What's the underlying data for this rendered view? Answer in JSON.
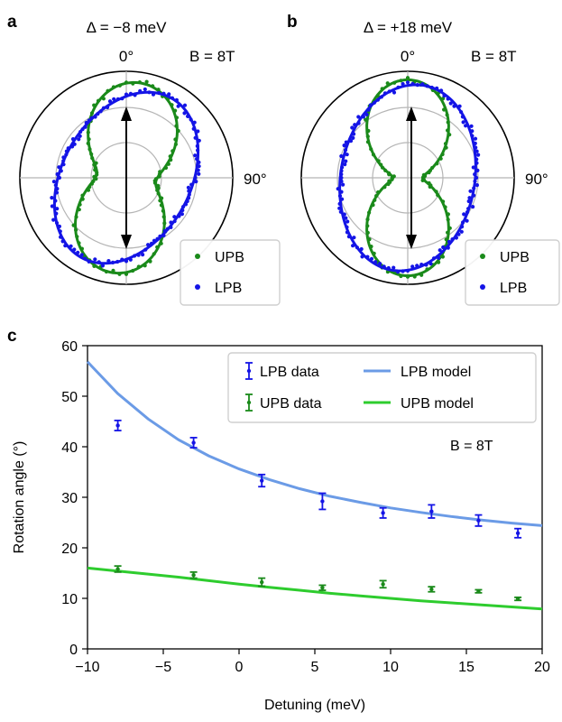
{
  "panels": {
    "a": {
      "letter": "a",
      "title": "Δ = −8 meV",
      "angle_top": "0°",
      "angle_right": "90°",
      "field_label": "B = 8T",
      "legend": [
        "UPB",
        "LPB"
      ]
    },
    "b": {
      "letter": "b",
      "title": "Δ = +18 meV",
      "angle_top": "0°",
      "angle_right": "90°",
      "field_label": "B = 8T",
      "legend": [
        "UPB",
        "LPB"
      ]
    },
    "c": {
      "letter": "c",
      "field_label": "B = 8T"
    }
  },
  "colors": {
    "upb_polar": "#1a8a1a",
    "lpb_polar": "#1414e6",
    "lpb_data": "#1414e6",
    "upb_data": "#1a8a1a",
    "lpb_model": "#6b9be6",
    "upb_model": "#2ecc2e"
  },
  "chart_data": [
    {
      "type": "scatter",
      "polar": true,
      "panel": "a",
      "title": "Δ = −8 meV",
      "angular_ticks": [
        "0°",
        "90°"
      ],
      "series": [
        {
          "name": "UPB",
          "shape": "figure-eight lobes along vertical, slightly tilted",
          "tilt_deg": 8
        },
        {
          "name": "LPB",
          "shape": "ellipse elongated along vertical, tilted",
          "tilt_deg": 30
        }
      ],
      "arrow": "vertical double-headed"
    },
    {
      "type": "scatter",
      "polar": true,
      "panel": "b",
      "title": "Δ = +18 meV",
      "angular_ticks": [
        "0°",
        "90°"
      ],
      "series": [
        {
          "name": "UPB",
          "shape": "figure-eight lobes along vertical",
          "tilt_deg": 0
        },
        {
          "name": "LPB",
          "shape": "ellipse elongated along vertical",
          "tilt_deg": 10
        }
      ],
      "arrow": "vertical double-headed"
    },
    {
      "type": "scatter",
      "panel": "c",
      "xlabel": "Detuning (meV)",
      "ylabel": "Rotation angle (°)",
      "xlim": [
        -10,
        20
      ],
      "ylim": [
        0,
        60
      ],
      "xticks": [
        -10,
        -5,
        0,
        5,
        10,
        15,
        20
      ],
      "yticks": [
        0,
        10,
        20,
        30,
        40,
        50,
        60
      ],
      "annotation": "B = 8T",
      "legend_position": "top-right",
      "series": [
        {
          "name": "LPB data",
          "kind": "errorbar",
          "x": [
            -8.0,
            -3.0,
            1.5,
            5.5,
            9.5,
            12.7,
            15.8,
            18.4
          ],
          "y": [
            44.2,
            40.8,
            33.3,
            29.2,
            26.9,
            27.2,
            25.4,
            22.9
          ],
          "err": [
            1.0,
            1.0,
            1.2,
            1.6,
            1.0,
            1.3,
            1.1,
            0.9
          ]
        },
        {
          "name": "UPB data",
          "kind": "errorbar",
          "x": [
            -8.0,
            -3.0,
            1.5,
            5.5,
            9.5,
            12.7,
            15.8,
            18.4
          ],
          "y": [
            15.8,
            14.6,
            13.2,
            12.1,
            12.8,
            11.8,
            11.4,
            9.9
          ],
          "err": [
            0.6,
            0.6,
            0.8,
            0.5,
            0.7,
            0.5,
            0.3,
            0.3
          ]
        },
        {
          "name": "LPB model",
          "kind": "line",
          "x": [
            -10,
            -8,
            -6,
            -4,
            -2,
            0,
            2,
            4,
            6,
            8,
            10,
            12,
            14,
            16,
            18,
            20
          ],
          "y": [
            56.8,
            50.5,
            45.5,
            41.4,
            38.2,
            35.6,
            33.5,
            31.7,
            30.2,
            29.0,
            27.9,
            27.0,
            26.2,
            25.5,
            24.9,
            24.4
          ]
        },
        {
          "name": "UPB model",
          "kind": "line",
          "x": [
            -10,
            -8,
            -6,
            -4,
            -2,
            0,
            2,
            4,
            6,
            8,
            10,
            12,
            14,
            16,
            18,
            20
          ],
          "y": [
            16.0,
            15.4,
            14.8,
            14.2,
            13.5,
            12.8,
            12.2,
            11.6,
            11.0,
            10.5,
            10.0,
            9.5,
            9.1,
            8.7,
            8.3,
            7.9
          ]
        }
      ]
    }
  ]
}
